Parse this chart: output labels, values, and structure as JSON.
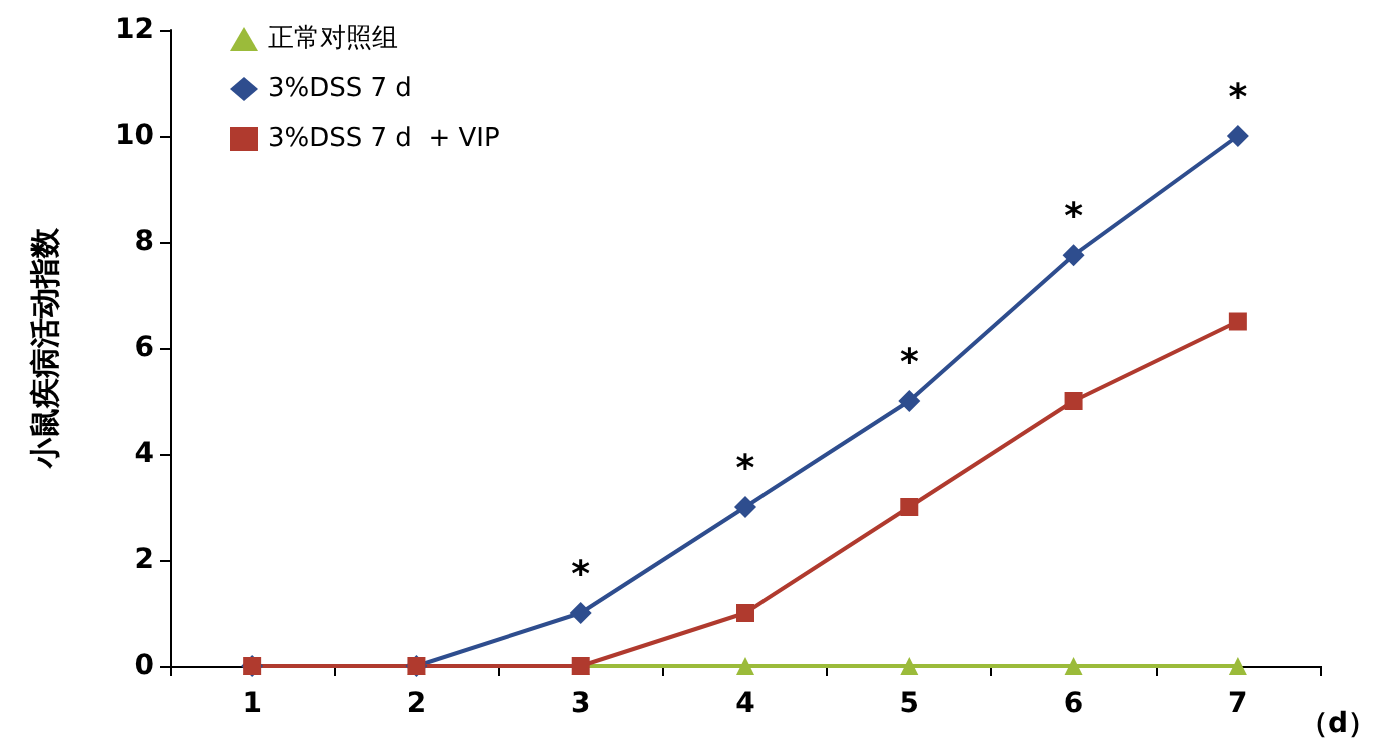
{
  "chart_data": {
    "type": "line",
    "ylabel": "小鼠疾病活动指数",
    "xlabel": "（d）",
    "categories": [
      "1",
      "2",
      "3",
      "4",
      "5",
      "6",
      "7"
    ],
    "series": [
      {
        "name": "正常对照组",
        "color": "#9bbb3a",
        "marker": "triangle",
        "values": [
          0,
          0,
          0,
          0,
          0,
          0,
          0
        ]
      },
      {
        "name": "3%DSS 7 d",
        "color": "#2e4d8e",
        "marker": "diamond",
        "values": [
          0,
          0,
          1,
          3,
          5,
          7.75,
          10
        ]
      },
      {
        "name": "3%DSS 7 d  + VIP",
        "color": "#b03a2e",
        "marker": "square",
        "values": [
          0,
          0,
          0,
          1,
          3,
          5,
          6.5
        ]
      }
    ],
    "ylim": [
      0,
      12
    ],
    "yticks": [
      0,
      2,
      4,
      6,
      8,
      10,
      12
    ],
    "grid": false,
    "legend": "top left",
    "line_style": "solid",
    "annotations": [
      {
        "text": "*",
        "x": "3",
        "y": 1
      },
      {
        "text": "*",
        "x": "4",
        "y": 3
      },
      {
        "text": "*",
        "x": "5",
        "y": 5
      },
      {
        "text": "*",
        "x": "6",
        "y": 7.75
      },
      {
        "text": "*",
        "x": "7",
        "y": 10
      }
    ]
  }
}
